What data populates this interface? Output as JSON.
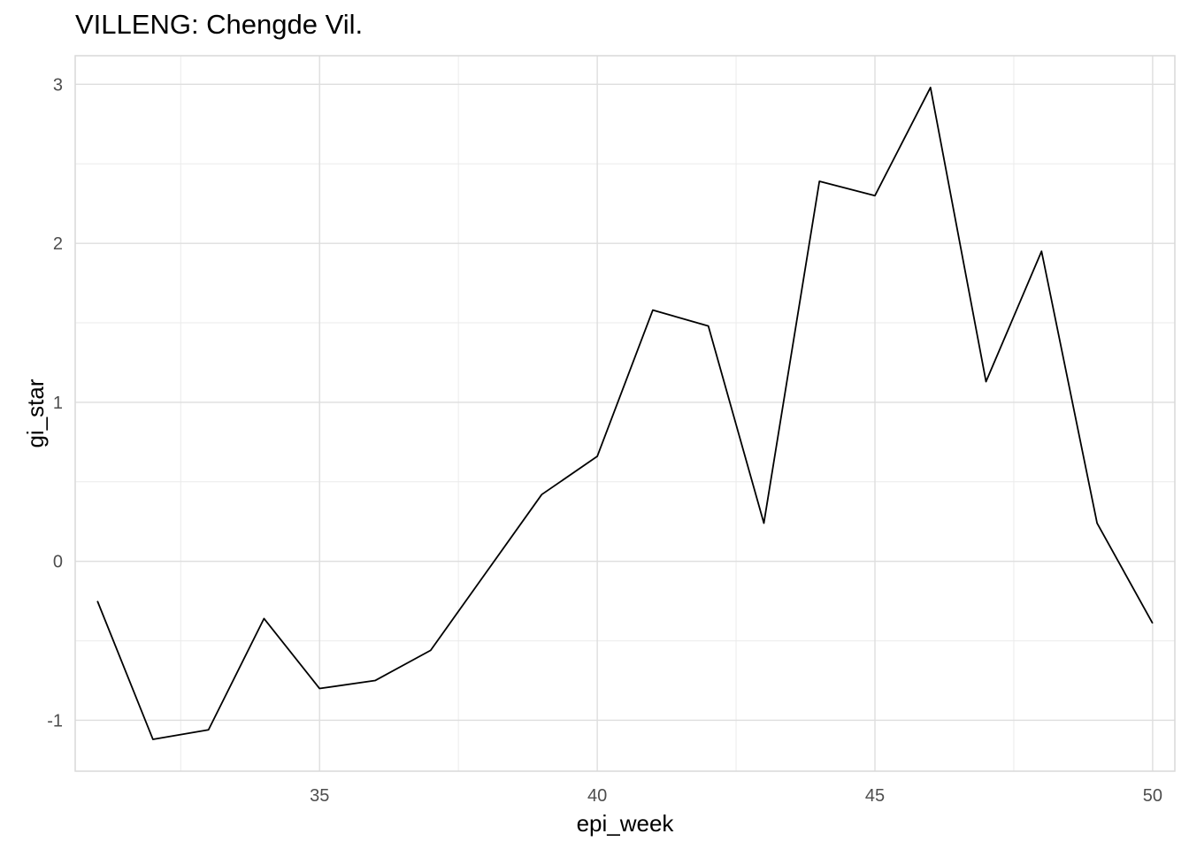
{
  "chart_data": {
    "type": "line",
    "title": "VILLENG: Chengde Vil.",
    "xlabel": "epi_week",
    "ylabel": "gi_star",
    "xlim": [
      30.6,
      50.4
    ],
    "ylim": [
      -1.32,
      3.18
    ],
    "x_ticks": [
      35,
      40,
      45,
      50
    ],
    "x_tick_labels": [
      "35",
      "40",
      "45",
      "50"
    ],
    "y_ticks": [
      -1,
      0,
      1,
      2,
      3
    ],
    "y_tick_labels": [
      "-1",
      "0",
      "1",
      "2",
      "3"
    ],
    "grid": true,
    "legend": "none",
    "line_color": "#000000",
    "series": [
      {
        "x": [
          31,
          32,
          33,
          34,
          35,
          36,
          37,
          38,
          39,
          40,
          41,
          42,
          43,
          44,
          45,
          46,
          47,
          48,
          49,
          50
        ],
        "values": [
          -0.25,
          -1.12,
          -1.06,
          -0.36,
          -0.8,
          -0.75,
          -0.56,
          -0.07,
          0.42,
          0.66,
          1.58,
          1.48,
          0.24,
          2.39,
          2.3,
          2.98,
          1.13,
          1.95,
          0.24,
          -0.39
        ]
      }
    ]
  }
}
